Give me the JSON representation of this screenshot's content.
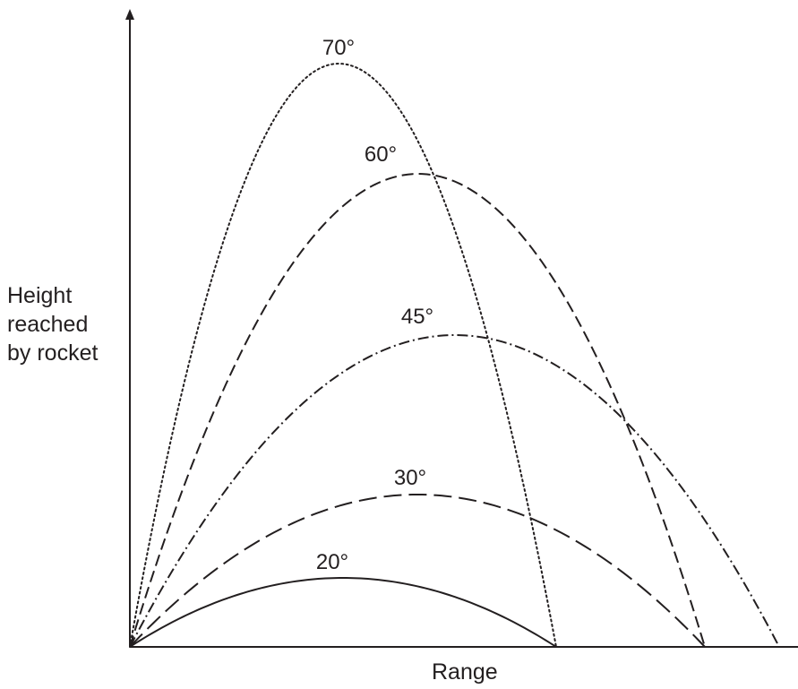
{
  "y_axis_label": [
    "Height",
    "reached",
    "by rocket"
  ],
  "x_axis_label": "Range",
  "trajectories": [
    {
      "angle_label": "70°",
      "dash": "dotted",
      "range": 476,
      "peak_x": 233,
      "peak_height": 651
    },
    {
      "angle_label": "60°",
      "dash": "dashed",
      "range": 642,
      "peak_x": 322,
      "peak_height": 528
    },
    {
      "angle_label": "45°",
      "dash": "dashdot",
      "range": 725,
      "peak_x": 363,
      "peak_height": 348
    },
    {
      "angle_label": "30°",
      "dash": "longdash",
      "range": 642,
      "peak_x": 321,
      "peak_height": 170
    },
    {
      "angle_label": "20°",
      "dash": "solid",
      "range": 476,
      "peak_x": 238,
      "peak_height": 77
    }
  ],
  "color": "#231f20"
}
